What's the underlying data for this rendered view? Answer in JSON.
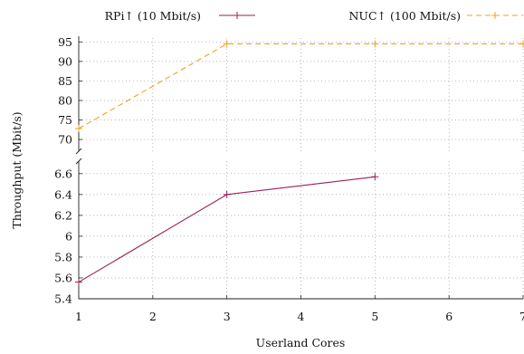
{
  "chart_data": {
    "type": "line",
    "broken_y_axis": true,
    "xlabel": "Userland Cores",
    "ylabel": "Throughput (Mbit/s)",
    "xlim": [
      1,
      7
    ],
    "x_ticks": [
      "1",
      "2",
      "3",
      "4",
      "5",
      "6",
      "7"
    ],
    "upper_panel": {
      "ylim": [
        67,
        96
      ],
      "y_ticks": [
        "70",
        "75",
        "80",
        "85",
        "90",
        "95"
      ]
    },
    "lower_panel": {
      "ylim": [
        5.4,
        6.72
      ],
      "y_ticks": [
        "5.4",
        "5.6",
        "5.8",
        "6",
        "6.2",
        "6.4",
        "6.6"
      ]
    },
    "grid": true,
    "legend_position": "top",
    "series": [
      {
        "name": "RPi↑ (10 Mbit/s)",
        "panel": "lower",
        "color": "#9b1e5a",
        "dash": "solid",
        "x": [
          1,
          3,
          5
        ],
        "values": [
          5.56,
          6.4,
          6.57
        ]
      },
      {
        "name": "NUC↑ (100 Mbit/s)",
        "panel": "upper",
        "color": "#f0a020",
        "dash": "dashed",
        "x": [
          1,
          3,
          5,
          7
        ],
        "values": [
          72.8,
          94.5,
          94.5,
          94.5
        ]
      }
    ]
  }
}
